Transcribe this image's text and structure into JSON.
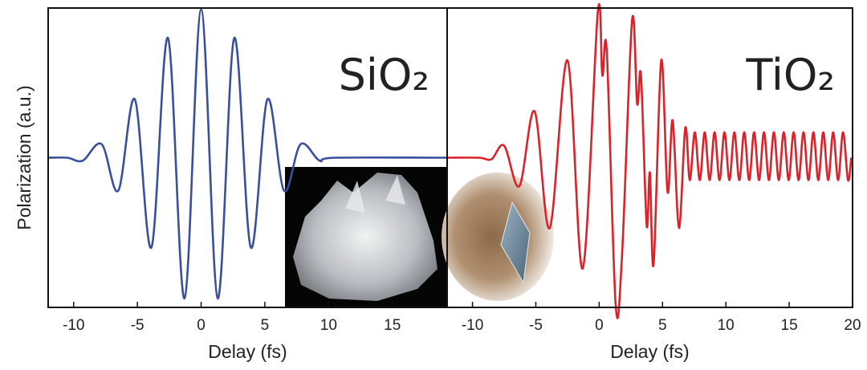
{
  "chart_data": [
    {
      "type": "line",
      "title": "SiO₂",
      "xlabel": "Delay (fs)",
      "ylabel": "Polarization (a.u.)",
      "color": "#3a4f9c",
      "xlim": [
        -12,
        19.3
      ],
      "xticks": [
        -10,
        -5,
        0,
        5,
        10,
        15
      ],
      "ylim": [
        -1,
        1
      ],
      "x": [
        -12,
        -10.5,
        -9.3,
        -7.8,
        -6.5,
        -5.2,
        -3.9,
        -2.6,
        -1.3,
        0,
        1.3,
        2.6,
        3.9,
        5.2,
        6.5,
        7.8,
        9.3,
        10.5,
        19.3
      ],
      "values": [
        0,
        0,
        -0.02,
        0.09,
        -0.22,
        0.39,
        -0.6,
        0.8,
        -0.94,
        0.99,
        -0.94,
        0.8,
        -0.6,
        0.39,
        -0.22,
        0.09,
        -0.02,
        0,
        0
      ]
    },
    {
      "type": "line",
      "title": "TiO₂",
      "xlabel": "Delay (fs)",
      "color": "#d9232b",
      "xlim": [
        -12,
        20
      ],
      "xticks": [
        -10,
        -5,
        0,
        5,
        10,
        15,
        20
      ],
      "ylim": [
        -1,
        1
      ],
      "x": [
        -12,
        -9.5,
        -8.5,
        -7.5,
        -6.3,
        -5.1,
        -3.9,
        -2.5,
        -1.3,
        -0.1,
        0.25,
        0.6,
        1.3,
        1.8,
        2.6,
        3.0,
        3.3,
        3.75,
        4.0,
        4.3,
        4.9,
        5.4,
        5.8,
        6.3,
        6.8,
        7.15,
        7.55,
        7.94,
        8.33,
        8.72,
        9.11,
        9.5,
        9.89,
        10.28,
        10.67,
        11.06,
        11.45,
        11.84,
        12.23,
        12.62,
        13.01,
        13.4,
        13.79,
        14.18,
        14.57,
        14.96,
        15.35,
        15.74,
        16.13,
        16.52,
        16.91,
        17.3,
        17.69,
        18.08,
        18.47,
        18.86,
        19.25,
        19.64,
        19.9
      ],
      "values": [
        0,
        0,
        -0.01,
        0.08,
        -0.19,
        0.31,
        -0.47,
        0.65,
        -0.74,
        0.98,
        0.55,
        0.71,
        -0.98,
        -0.66,
        0.92,
        0.36,
        0.55,
        -0.45,
        -0.1,
        -0.71,
        0.65,
        -0.23,
        0.25,
        -0.47,
        0.2,
        -0.15,
        0.17,
        -0.15,
        0.17,
        -0.15,
        0.17,
        -0.15,
        0.17,
        -0.15,
        0.17,
        -0.15,
        0.17,
        -0.15,
        0.17,
        -0.15,
        0.17,
        -0.15,
        0.17,
        -0.15,
        0.17,
        -0.15,
        0.17,
        -0.15,
        0.17,
        -0.15,
        0.17,
        -0.15,
        0.17,
        -0.15,
        0.17,
        -0.15,
        0.17,
        -0.15,
        0
      ]
    }
  ]
}
